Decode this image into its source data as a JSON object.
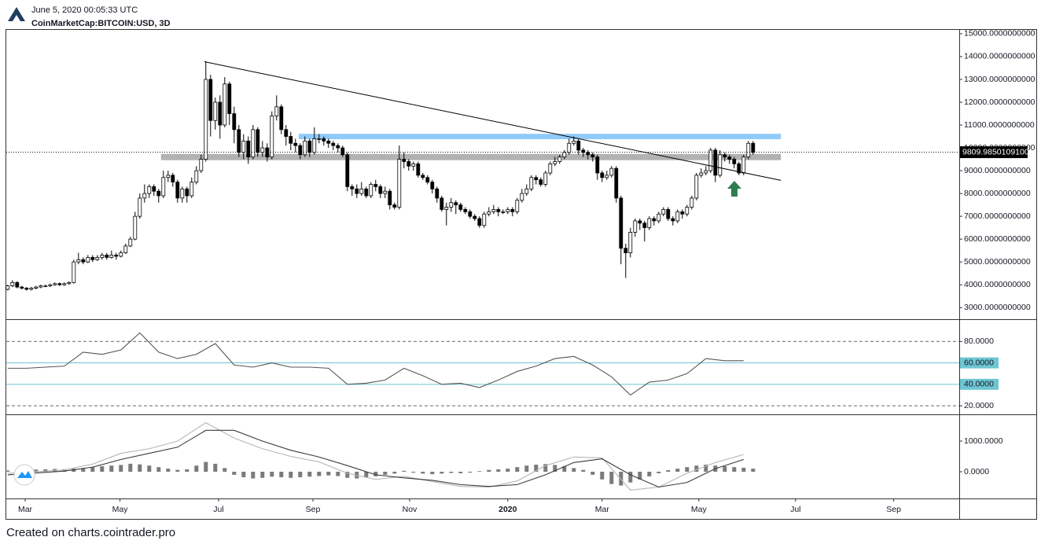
{
  "header": {
    "date": "June 5, 2020 00:05:33 UTC",
    "symbol": "CoinMarketCap:BITCOIN:USD, 3D"
  },
  "footer": "Created on charts.cointrader.pro",
  "x_axis": {
    "xlim": [
      -0.3,
      201.7
    ],
    "xticks": [
      {
        "value": 3.7,
        "label": "Mar"
      },
      {
        "value": 23.8,
        "label": "May"
      },
      {
        "value": 44.7,
        "label": "Jul"
      },
      {
        "value": 64.7,
        "label": "Sep"
      },
      {
        "value": 85.2,
        "label": "Nov"
      },
      {
        "value": 106,
        "label": "2020"
      },
      {
        "value": 126,
        "label": "Mar"
      },
      {
        "value": 146.5,
        "label": "May"
      },
      {
        "value": 167,
        "label": "Jul"
      },
      {
        "value": 187.8,
        "label": "Sep"
      }
    ]
  },
  "chart_data": [
    {
      "type": "candlestick",
      "ylim": [
        2491,
        15170
      ],
      "yticks": [
        {
          "value": 15000,
          "label": "15000.0000000000"
        },
        {
          "value": 14000,
          "label": "14000.0000000000"
        },
        {
          "value": 13000,
          "label": "13000.0000000000"
        },
        {
          "value": 12000,
          "label": "12000.0000000000"
        },
        {
          "value": 11000,
          "label": "11000.0000000000"
        },
        {
          "value": 10000,
          "label": "10000.0000000000"
        },
        {
          "value": 9000,
          "label": "9000.0000000000"
        },
        {
          "value": 8000,
          "label": "8000.0000000000"
        },
        {
          "value": 7000,
          "label": "7000.0000000000"
        },
        {
          "value": 6000,
          "label": "6000.0000000000"
        },
        {
          "value": 5000,
          "label": "5000.0000000000"
        },
        {
          "value": 4000,
          "label": "4000.0000000000"
        },
        {
          "value": 3000,
          "label": "3000.0000000000"
        }
      ],
      "last_price": {
        "value": 9809.985,
        "label": "9809.9850109100"
      },
      "up_color": "#ffffff",
      "down_color": "#000000",
      "open": [
        3800,
        3950,
        4100,
        3900,
        3850,
        3800,
        3850,
        3900,
        3950,
        3950,
        4000,
        4050,
        4000,
        4050,
        4100,
        5000,
        5100,
        5000,
        5200,
        5100,
        5200,
        5300,
        5200,
        5300,
        5250,
        5400,
        5700,
        6000,
        7000,
        7800,
        8000,
        8300,
        8100,
        7900,
        8700,
        8800,
        8500,
        7800,
        8200,
        7900,
        8500,
        9000,
        9500,
        13000,
        11200,
        12000,
        11000,
        12800,
        11500,
        10800,
        9800,
        10300,
        9600,
        10800,
        9800,
        10000,
        9600,
        11400,
        11800,
        10800,
        10500,
        10200,
        10100,
        9700,
        10300,
        9800,
        10400,
        10400,
        10300,
        10200,
        10100,
        10000,
        9700,
        8300,
        8200,
        8000,
        8200,
        7900,
        8400,
        8300,
        8000,
        8100,
        7500,
        7400,
        9500,
        9400,
        9200,
        9300,
        8800,
        8700,
        8500,
        8200,
        7800,
        7300,
        7400,
        7600,
        7500,
        7300,
        7200,
        7000,
        6900,
        6600,
        7100,
        7200,
        7300,
        7200,
        7200,
        7300,
        7200,
        7700,
        8000,
        8200,
        8700,
        8600,
        8400,
        8900,
        9300,
        9400,
        9600,
        9800,
        10200,
        10300,
        9900,
        9800,
        9700,
        9600,
        8900,
        8700,
        8800,
        9100,
        7800,
        5600,
        5400,
        6300,
        6800,
        6700,
        6500,
        6900,
        6800,
        7100,
        7300,
        6900,
        6800,
        7200,
        7100,
        7400,
        7800,
        8800,
        8900,
        9000,
        9900,
        8800,
        9700,
        9600,
        9500,
        9300,
        8900,
        9600,
        10200
      ],
      "high": [
        4000,
        4200,
        4150,
        3950,
        3900,
        3900,
        3950,
        4000,
        4000,
        4050,
        4100,
        4100,
        4100,
        4150,
        5100,
        5400,
        5200,
        5300,
        5300,
        5300,
        5400,
        5400,
        5500,
        5400,
        5500,
        5800,
        6100,
        7200,
        8000,
        8400,
        8400,
        8400,
        8200,
        9000,
        9000,
        8900,
        8600,
        8300,
        8300,
        8700,
        9200,
        9700,
        13800,
        13200,
        12200,
        12300,
        13100,
        12900,
        11800,
        11000,
        10600,
        10500,
        11000,
        10900,
        10300,
        10200,
        11600,
        12300,
        11900,
        11000,
        10700,
        10400,
        10200,
        10500,
        10400,
        10900,
        10600,
        10500,
        10400,
        10300,
        10200,
        10100,
        9800,
        8400,
        8400,
        8500,
        8300,
        8500,
        8600,
        8400,
        8300,
        8200,
        7600,
        10100,
        9800,
        9500,
        9400,
        9400,
        8900,
        8800,
        8600,
        8300,
        7900,
        7600,
        7800,
        7700,
        7600,
        7400,
        7300,
        7100,
        7000,
        7200,
        7400,
        7500,
        7400,
        7300,
        7400,
        7400,
        7800,
        8200,
        8400,
        8800,
        8800,
        8700,
        9000,
        9400,
        9600,
        9700,
        9900,
        10400,
        10500,
        10400,
        10000,
        9900,
        9800,
        9700,
        9000,
        9000,
        9200,
        9200,
        7900,
        5800,
        6500,
        6900,
        6900,
        6800,
        7000,
        7000,
        7200,
        7400,
        7400,
        7000,
        7300,
        7300,
        7500,
        7900,
        8900,
        9100,
        9200,
        10000,
        10000,
        9900,
        9800,
        9700,
        9600,
        9400,
        9700,
        10300,
        10300
      ],
      "low": [
        3750,
        3900,
        3850,
        3800,
        3750,
        3750,
        3800,
        3850,
        3900,
        3900,
        3950,
        3950,
        3950,
        4000,
        4050,
        4900,
        4900,
        4950,
        5000,
        5050,
        5100,
        5100,
        5150,
        5100,
        5200,
        5350,
        5650,
        5950,
        6900,
        7600,
        7800,
        7900,
        7600,
        7800,
        8500,
        8300,
        7600,
        7600,
        7600,
        7800,
        8400,
        8900,
        9400,
        10500,
        10800,
        10400,
        10900,
        11000,
        10200,
        9600,
        9500,
        9300,
        9500,
        9600,
        9600,
        9400,
        9500,
        11200,
        10600,
        10100,
        9900,
        9800,
        9500,
        9600,
        9600,
        9700,
        10200,
        10100,
        10000,
        9900,
        9800,
        9600,
        8100,
        7900,
        7800,
        7900,
        7800,
        7800,
        8100,
        7800,
        7800,
        7300,
        7300,
        7300,
        9100,
        9000,
        9000,
        8700,
        8600,
        8400,
        8000,
        7600,
        7200,
        6600,
        7200,
        7100,
        7200,
        7100,
        6900,
        6800,
        6500,
        6500,
        7000,
        7100,
        7000,
        7100,
        7100,
        7000,
        7100,
        7600,
        7900,
        8100,
        8400,
        8300,
        8300,
        8800,
        9200,
        9300,
        9500,
        9700,
        10100,
        9700,
        9600,
        9500,
        9400,
        8600,
        8500,
        8600,
        8700,
        7600,
        4900,
        4300,
        5200,
        6100,
        6400,
        5900,
        6400,
        6600,
        6700,
        7000,
        6800,
        6600,
        6700,
        6900,
        7000,
        7300,
        7700,
        8700,
        8800,
        8900,
        8500,
        8700,
        9400,
        9300,
        9100,
        8800,
        8800,
        9500,
        9700
      ],
      "close": [
        3950,
        4100,
        3900,
        3850,
        3800,
        3850,
        3900,
        3950,
        3950,
        4000,
        4050,
        4000,
        4050,
        4100,
        5000,
        5100,
        5000,
        5200,
        5100,
        5200,
        5300,
        5200,
        5300,
        5250,
        5400,
        5700,
        6000,
        7000,
        7800,
        8000,
        8300,
        8100,
        7900,
        8700,
        8800,
        8500,
        7800,
        8200,
        7900,
        8500,
        9000,
        9500,
        13000,
        11200,
        12000,
        11000,
        12800,
        11500,
        10800,
        9800,
        10300,
        9600,
        10800,
        9800,
        10000,
        9600,
        11400,
        11800,
        10800,
        10500,
        10200,
        10100,
        9700,
        10300,
        9800,
        10400,
        10400,
        10300,
        10200,
        10100,
        10000,
        9700,
        8300,
        8200,
        8000,
        8200,
        7900,
        8400,
        8300,
        8000,
        8100,
        7500,
        7400,
        9500,
        9400,
        9200,
        9300,
        8800,
        8700,
        8500,
        8200,
        7800,
        7300,
        7400,
        7600,
        7500,
        7300,
        7200,
        7000,
        6900,
        6600,
        7100,
        7200,
        7300,
        7200,
        7200,
        7300,
        7200,
        7700,
        8000,
        8200,
        8700,
        8600,
        8400,
        8900,
        9300,
        9400,
        9600,
        9800,
        10200,
        10300,
        9900,
        9800,
        9700,
        9600,
        8900,
        8700,
        8800,
        9100,
        7800,
        5600,
        5400,
        6300,
        6800,
        6700,
        6500,
        6900,
        6800,
        7100,
        7300,
        6900,
        6800,
        7200,
        7100,
        7400,
        7800,
        8800,
        8900,
        9000,
        9900,
        8800,
        9700,
        9600,
        9500,
        9300,
        8900,
        9600,
        10200,
        9800
      ],
      "zones": [
        {
          "x": [
            32.5,
            163.9
          ],
          "y": [
            9460,
            9732
          ],
          "color": "#b2b2b2"
        },
        {
          "x": [
            61.7,
            163.9
          ],
          "y": [
            10378,
            10615
          ],
          "color": "#90caf9"
        }
      ],
      "trendline": {
        "x": [
          41.7,
          163.9
        ],
        "y": [
          13776,
          8576
        ],
        "color": "#000000"
      }
    },
    {
      "type": "line",
      "ylim": [
        12,
        100
      ],
      "yticks": [
        {
          "value": 80,
          "label": "80.0000"
        },
        {
          "value": 60,
          "label": "60.0000"
        },
        {
          "value": 40,
          "label": "40.0000"
        },
        {
          "value": 20,
          "label": "20.0000"
        }
      ],
      "highlight_levels": [
        60,
        40
      ],
      "highlight_color": "#6fc6d3",
      "series": [
        {
          "color": "#555555",
          "x": [
            0,
            4,
            8,
            12,
            16,
            20,
            24,
            28,
            32,
            36,
            40,
            44,
            48,
            52,
            56,
            60,
            64,
            68,
            72,
            76,
            80,
            84,
            88,
            92,
            96,
            100,
            104,
            108,
            112,
            116,
            120,
            124,
            128,
            132,
            136,
            140,
            144,
            148,
            152,
            156
          ],
          "values": [
            55,
            55,
            56,
            57,
            70,
            68,
            72,
            88,
            70,
            64,
            68,
            78,
            58,
            56,
            60,
            56,
            56,
            55,
            40,
            41,
            44,
            55,
            48,
            40,
            41,
            37,
            44,
            52,
            57,
            64,
            66,
            58,
            47,
            30,
            42,
            44,
            50,
            64,
            62,
            62
          ]
        }
      ]
    },
    {
      "type": "line",
      "ylim": [
        -872,
        1846
      ],
      "yticks": [
        {
          "value": 1000,
          "label": "1000.0000"
        },
        {
          "value": 0,
          "label": "0.0000"
        }
      ],
      "series": [
        {
          "color": "#b5b5b5",
          "x": [
            0,
            6,
            12,
            18,
            24,
            30,
            36,
            42,
            48,
            54,
            60,
            66,
            72,
            78,
            84,
            90,
            96,
            102,
            108,
            114,
            120,
            126,
            132,
            138,
            144,
            150,
            156
          ],
          "values": [
            -50,
            0,
            60,
            250,
            600,
            750,
            1000,
            1600,
            1100,
            750,
            500,
            320,
            -50,
            -250,
            -150,
            -320,
            -480,
            -500,
            -300,
            200,
            480,
            450,
            -600,
            -500,
            -50,
            300,
            560
          ]
        },
        {
          "color": "#3a3a3a",
          "x": [
            0,
            6,
            12,
            18,
            24,
            30,
            36,
            42,
            48,
            54,
            60,
            66,
            72,
            78,
            84,
            90,
            96,
            102,
            108,
            114,
            120,
            126,
            132,
            138,
            144,
            150,
            156
          ],
          "values": [
            -100,
            -40,
            20,
            150,
            400,
            600,
            800,
            1350,
            1350,
            1000,
            700,
            480,
            200,
            -100,
            -200,
            -280,
            -420,
            -480,
            -420,
            -100,
            300,
            420,
            -100,
            -500,
            -350,
            100,
            400
          ]
        }
      ],
      "histogram": {
        "color": "#7a7a7a",
        "x": [
          0,
          2,
          4,
          6,
          8,
          10,
          12,
          14,
          16,
          18,
          20,
          22,
          24,
          26,
          28,
          30,
          32,
          34,
          36,
          38,
          40,
          42,
          44,
          46,
          48,
          50,
          52,
          54,
          56,
          58,
          60,
          62,
          64,
          66,
          68,
          70,
          72,
          74,
          76,
          78,
          80,
          82,
          84,
          86,
          88,
          90,
          92,
          94,
          96,
          98,
          100,
          102,
          104,
          106,
          108,
          110,
          112,
          114,
          116,
          118,
          120,
          122,
          124,
          126,
          128,
          130,
          132,
          134,
          136,
          138,
          140,
          142,
          144,
          146,
          148,
          150,
          152,
          154,
          156,
          158
        ],
        "values": [
          40,
          50,
          60,
          70,
          80,
          90,
          80,
          100,
          120,
          150,
          180,
          200,
          220,
          260,
          240,
          200,
          150,
          100,
          60,
          80,
          200,
          320,
          260,
          120,
          -100,
          -180,
          -220,
          -200,
          -160,
          -180,
          -200,
          -180,
          -160,
          -140,
          -120,
          -140,
          -200,
          -220,
          -180,
          -150,
          -100,
          -60,
          30,
          -30,
          -60,
          -80,
          -60,
          -40,
          -50,
          -30,
          20,
          60,
          80,
          100,
          150,
          200,
          230,
          250,
          220,
          180,
          120,
          60,
          -100,
          -250,
          -400,
          -450,
          -350,
          -250,
          -150,
          -50,
          50,
          100,
          150,
          200,
          230,
          200,
          180,
          150,
          130,
          100
        ]
      }
    }
  ]
}
